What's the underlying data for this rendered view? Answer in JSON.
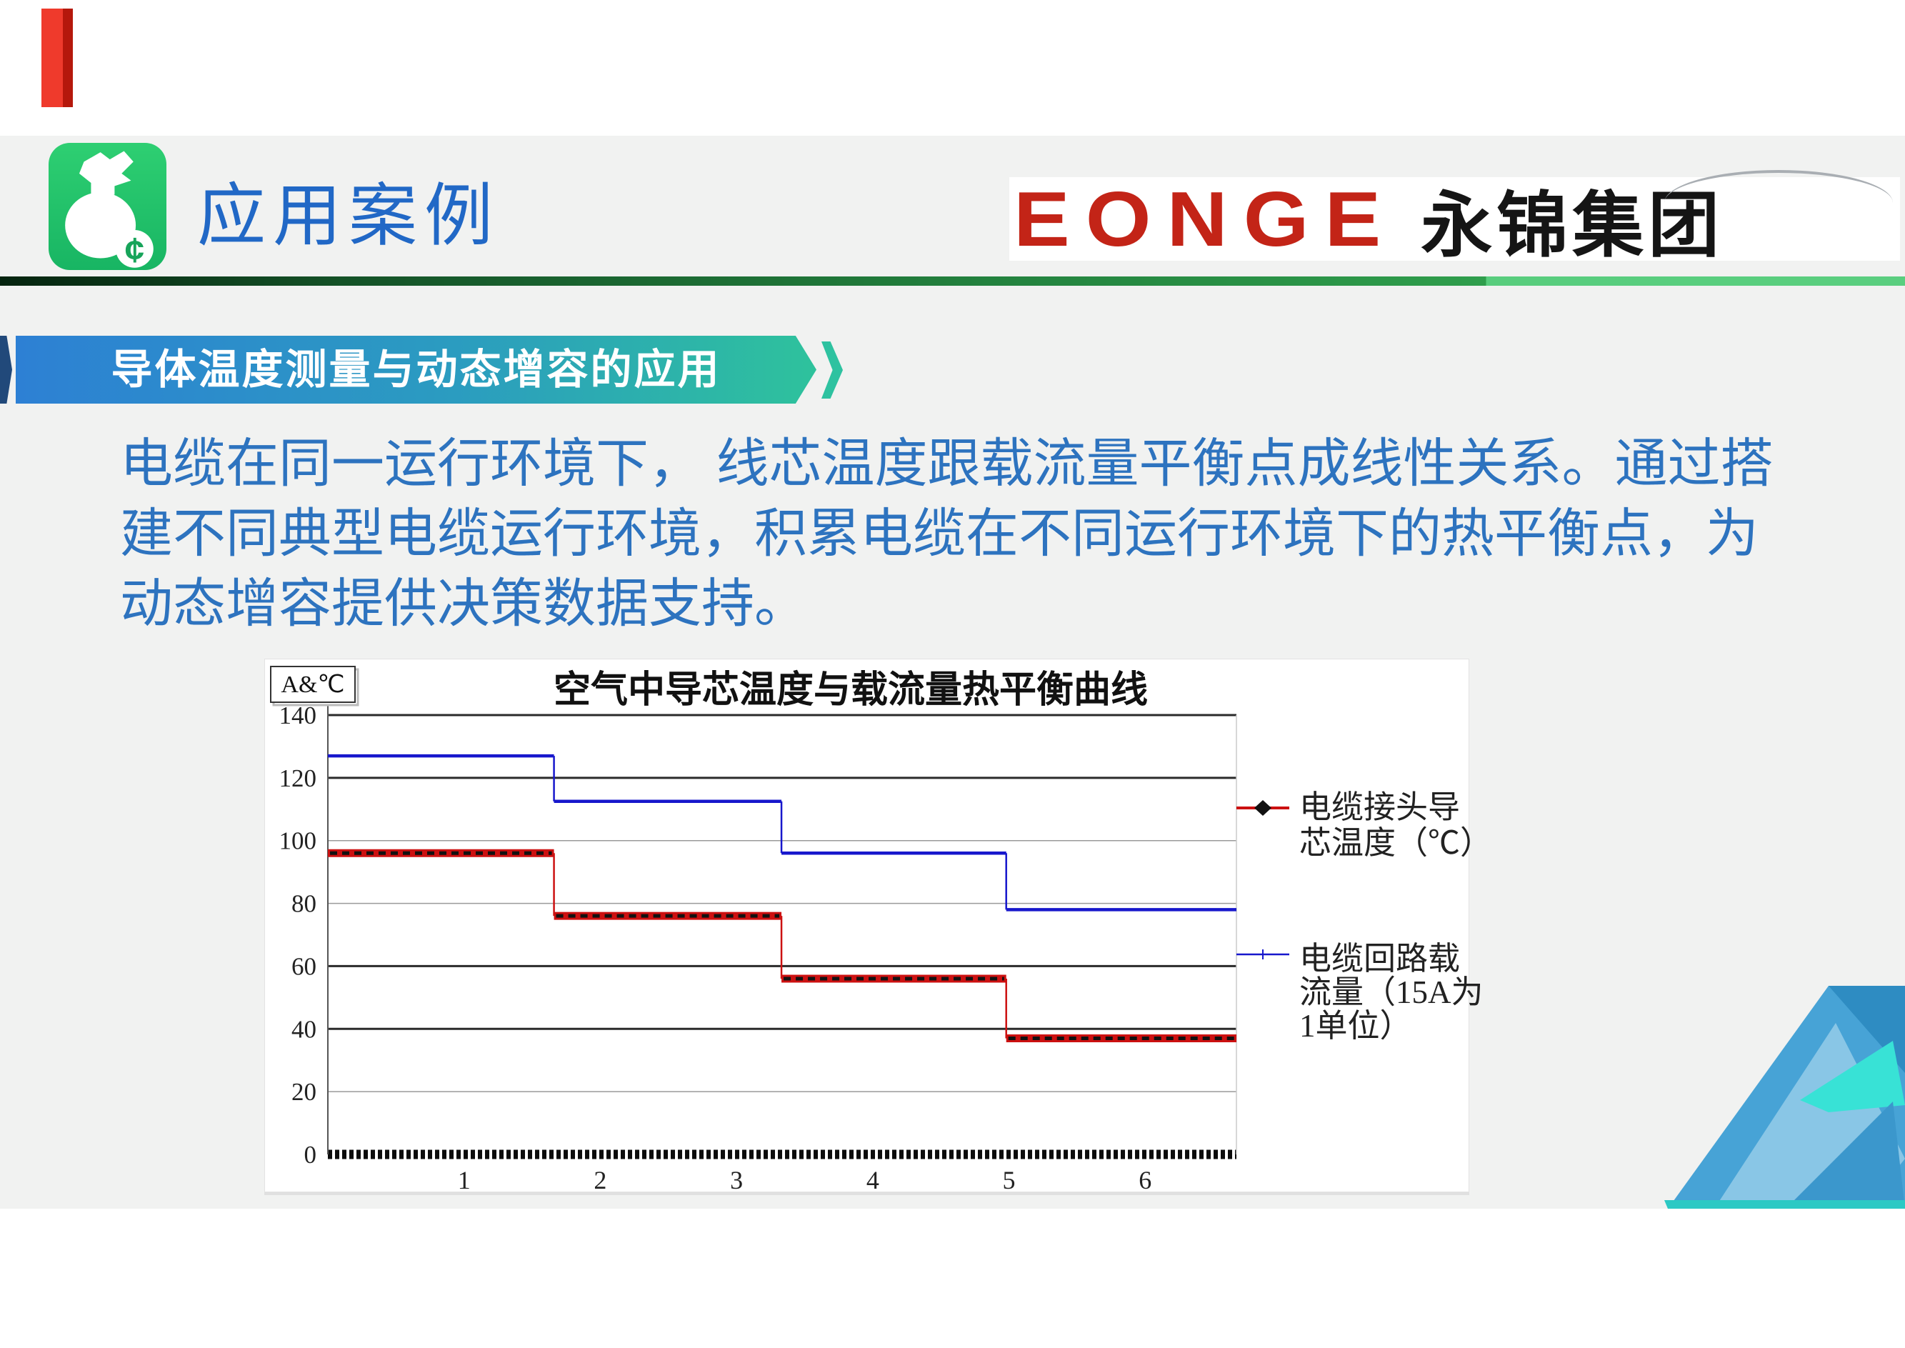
{
  "page": {
    "background": "#ffffff",
    "slide_background": "#f1f2f1"
  },
  "decorations": {
    "red_ribbon_color": "#e1251b",
    "separator_colors": [
      "#05240f",
      "#2f9e4c",
      "#5ace7f"
    ],
    "corner_triangle_colors": [
      "#47a3d6",
      "#2e8cc2",
      "#90cae8",
      "#38e2d6",
      "#2cc9c4"
    ]
  },
  "header": {
    "page_title": "应用案例",
    "icon": "money-bag-icon",
    "logo_brand": "EONGE",
    "logo_cn": "永锦集团",
    "brand_color": "#c32417"
  },
  "section_banner": {
    "label": "导体温度测量与动态增容的应用"
  },
  "body_paragraph": {
    "color": "#2d73bf",
    "lines": [
      "电缆在同一运行环境下， 线芯温度跟载流量平衡点成线性关系。通过搭",
      "建不同典型电缆运行环境，积累电缆在不同运行环境下的热平衡点，为",
      "动态增容提供决策数据支持。"
    ]
  },
  "chart_data": {
    "type": "line",
    "title": "空气中导芯温度与载流量热平衡曲线",
    "unit_label": "A&℃",
    "xlabel": "",
    "ylabel": "",
    "xlim": [
      0,
      6.67
    ],
    "ylim": [
      0,
      140
    ],
    "x_ticks": [
      1,
      2,
      3,
      4,
      5,
      6
    ],
    "y_ticks": [
      140,
      120,
      100,
      80,
      60,
      40,
      20,
      0
    ],
    "thick_gridlines": [
      140,
      120,
      60,
      40
    ],
    "grid": "horizontal",
    "legend_position": "right",
    "zero_axis_style": "dense-black-dashes",
    "series": [
      {
        "name": "电缆接头导芯温度(℃)",
        "color": "#cc1111",
        "marker": "black-diamond",
        "line_width": 11,
        "x": [
          0,
          1.66,
          1.66,
          3.33,
          3.33,
          4.98,
          4.98,
          6.67
        ],
        "y": [
          96,
          96,
          76,
          76,
          56,
          56,
          37,
          37
        ]
      },
      {
        "name": "电缆回路载流量(15A为1单位)",
        "color": "#1717cc",
        "marker": "none",
        "line_width": 4.5,
        "x": [
          0,
          1.66,
          1.66,
          3.33,
          3.33,
          4.98,
          4.98,
          6.67
        ],
        "y": [
          127,
          127,
          112.5,
          112.5,
          96,
          96,
          78,
          78
        ]
      }
    ],
    "legend": [
      {
        "label_lines": [
          "电缆接头导",
          "芯温度（℃）"
        ]
      },
      {
        "label_lines": [
          "电缆回路载",
          "流量（15A为",
          "1单位）"
        ]
      }
    ]
  }
}
